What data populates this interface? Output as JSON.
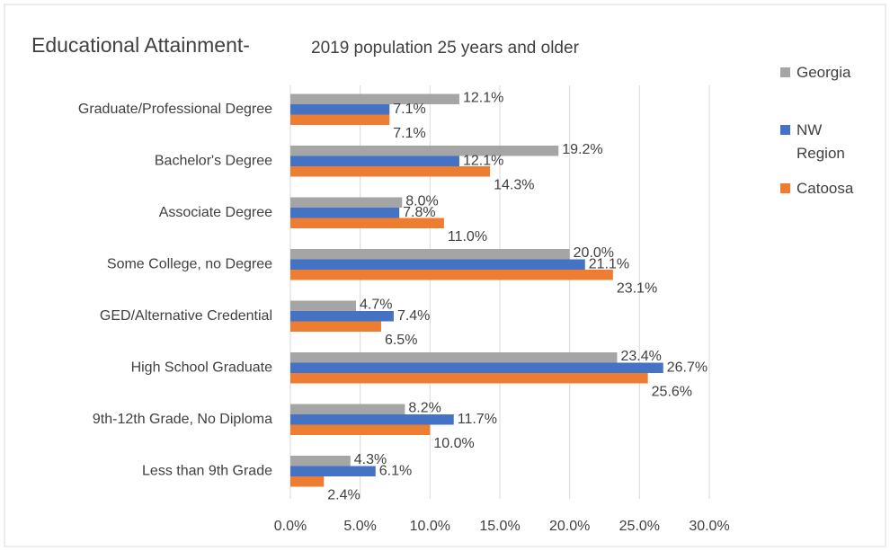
{
  "chart_data": {
    "type": "hbar",
    "title": "Educational Attainment-",
    "subtitle": "2019 population 25 years and older",
    "categories": [
      "Graduate/Professional Degree",
      "Bachelor's Degree",
      "Associate Degree",
      "Some College, no Degree",
      "GED/Alternative Credential",
      "High School Graduate",
      "9th-12th Grade, No Diploma",
      "Less than 9th Grade"
    ],
    "series": [
      {
        "name": "Georgia",
        "color": "#a5a5a5",
        "values": [
          12.1,
          19.2,
          8.0,
          20.0,
          4.7,
          23.4,
          8.2,
          4.3
        ],
        "value_labels": [
          "12.1%",
          "19.2%",
          "8.0%",
          "20.0%",
          "4.7%",
          "23.4%",
          "8.2%",
          "4.3%"
        ]
      },
      {
        "name": "NW Region",
        "color": "#4472c4",
        "values": [
          7.1,
          12.1,
          7.8,
          21.1,
          7.4,
          26.7,
          11.7,
          6.1
        ],
        "value_labels": [
          "7.1%",
          "12.1%",
          "7.8%",
          "21.1%",
          "7.4%",
          "26.7%",
          "11.7%",
          "6.1%"
        ]
      },
      {
        "name": "Catoosa",
        "color": "#ed7d31",
        "values": [
          7.1,
          14.3,
          11.0,
          23.1,
          6.5,
          25.6,
          10.0,
          2.4
        ],
        "value_labels": [
          "7.1%",
          "14.3%",
          "11.0%",
          "23.1%",
          "6.5%",
          "25.6%",
          "10.0%",
          "2.4%"
        ]
      }
    ],
    "xlim": [
      0,
      30
    ],
    "xticks": [
      {
        "value": 0,
        "label": "0.0%"
      },
      {
        "value": 5,
        "label": "5.0%"
      },
      {
        "value": 10,
        "label": "10.0%"
      },
      {
        "value": 15,
        "label": "15.0%"
      },
      {
        "value": 20,
        "label": "20.0%"
      },
      {
        "value": 25,
        "label": "25.0%"
      },
      {
        "value": 30,
        "label": "30.0%"
      }
    ],
    "grid": true,
    "legend": "right"
  }
}
